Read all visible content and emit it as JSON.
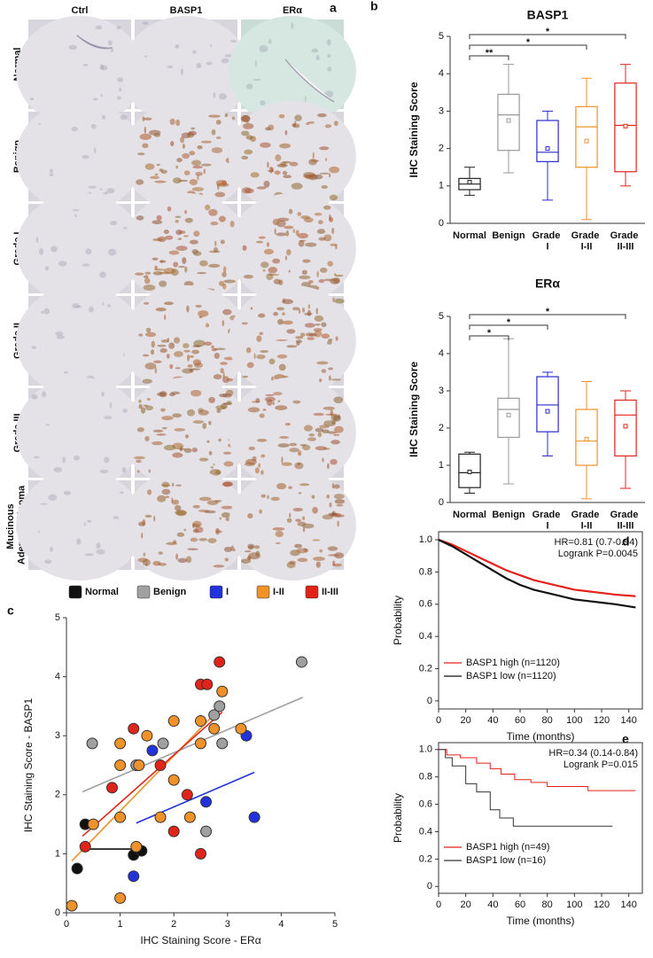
{
  "image_grid": {
    "label": "a",
    "columns": [
      "Ctrl",
      "BASP1",
      "ERα"
    ],
    "rows": [
      "Normal",
      "Benign",
      "Grade I",
      "Grade II",
      "Grade III",
      "Mucinous Adenocarcinoma"
    ]
  },
  "chart_data": [
    {
      "type": "box",
      "label": "b",
      "title": "BASP1",
      "ylabel": "IHC Staining Score",
      "categories": [
        "Normal",
        "Benign",
        "Grade I",
        "Grade I-II",
        "Grade II-III"
      ],
      "colors": [
        "#222222",
        "#999999",
        "#2a2ad0",
        "#f0922a",
        "#e2231a"
      ],
      "ylim": [
        0,
        5
      ],
      "yticks": [
        0,
        1,
        2,
        3,
        4,
        5
      ],
      "boxes": [
        {
          "min": 0.75,
          "q1": 0.9,
          "median": 1.05,
          "q3": 1.2,
          "max": 1.5,
          "mean": 1.1
        },
        {
          "min": 1.35,
          "q1": 1.95,
          "median": 2.9,
          "q3": 3.45,
          "max": 4.25,
          "mean": 2.75
        },
        {
          "min": 0.62,
          "q1": 1.65,
          "median": 1.9,
          "q3": 2.75,
          "max": 3.0,
          "mean": 2.0
        },
        {
          "min": 0.1,
          "q1": 1.5,
          "median": 2.58,
          "q3": 3.12,
          "max": 3.88,
          "mean": 2.2
        },
        {
          "min": 1.0,
          "q1": 1.38,
          "median": 2.62,
          "q3": 3.75,
          "max": 4.25,
          "mean": 2.6
        }
      ],
      "annotations": [
        {
          "from": 0,
          "to": 1,
          "text": "**"
        },
        {
          "from": 0,
          "to": 3,
          "text": "*"
        },
        {
          "from": 0,
          "to": 4,
          "text": "*"
        }
      ]
    },
    {
      "type": "box",
      "title": "ERα",
      "ylabel": "IHC Staining Score",
      "categories": [
        "Normal",
        "Benign",
        "Grade I",
        "Grade I-II",
        "Grade II-III"
      ],
      "colors": [
        "#222222",
        "#999999",
        "#2a2ad0",
        "#f0922a",
        "#e2231a"
      ],
      "ylim": [
        0,
        5
      ],
      "yticks": [
        0,
        1,
        2,
        3,
        4,
        5
      ],
      "boxes": [
        {
          "min": 0.25,
          "q1": 0.4,
          "median": 0.8,
          "q3": 1.3,
          "max": 1.35,
          "mean": 0.82
        },
        {
          "min": 0.5,
          "q1": 1.75,
          "median": 2.5,
          "q3": 2.8,
          "max": 4.4,
          "mean": 2.35
        },
        {
          "min": 1.25,
          "q1": 1.9,
          "median": 2.62,
          "q3": 3.38,
          "max": 3.5,
          "mean": 2.45
        },
        {
          "min": 0.1,
          "q1": 1.0,
          "median": 1.65,
          "q3": 2.5,
          "max": 3.25,
          "mean": 1.7
        },
        {
          "min": 0.38,
          "q1": 1.25,
          "median": 2.35,
          "q3": 2.75,
          "max": 3.0,
          "mean": 2.05
        }
      ],
      "annotations": [
        {
          "from": 0,
          "to": 1,
          "text": "*"
        },
        {
          "from": 0,
          "to": 2,
          "text": "*"
        },
        {
          "from": 0,
          "to": 4,
          "text": "*"
        }
      ]
    },
    {
      "type": "scatter",
      "label": "c",
      "xlabel": "IHC Staining Score - ERα",
      "ylabel": "IHC Staining Score - BASP1",
      "xlim": [
        0,
        5
      ],
      "ylim": [
        0,
        5
      ],
      "xticks": [
        0,
        1,
        2,
        3,
        4,
        5
      ],
      "yticks": [
        0,
        1,
        2,
        3,
        4,
        5
      ],
      "legend": "top",
      "series": [
        {
          "name": "Normal",
          "color": "#111111",
          "x": [
            0.2,
            0.35,
            1.25,
            1.4
          ],
          "values": [
            0.75,
            1.5,
            0.98,
            1.05
          ],
          "fit": {
            "x": [
              0.3,
              1.35
            ],
            "values": [
              1.08,
              1.08
            ]
          }
        },
        {
          "name": "Benign",
          "color": "#a0a0a0",
          "x": [
            0.48,
            1.3,
            1.8,
            2.6,
            2.75,
            2.9,
            2.85,
            4.38
          ],
          "values": [
            2.87,
            2.5,
            2.87,
            1.38,
            3.35,
            2.87,
            3.5,
            4.25
          ],
          "fit": {
            "x": [
              0.3,
              4.4
            ],
            "values": [
              2.05,
              3.65
            ]
          }
        },
        {
          "name": "I",
          "color": "#2233dd",
          "x": [
            1.25,
            1.6,
            2.6,
            3.35,
            3.5
          ],
          "values": [
            0.62,
            2.75,
            1.88,
            3.0,
            1.62
          ],
          "fit": {
            "x": [
              1.3,
              3.5
            ],
            "values": [
              1.52,
              2.38
            ]
          }
        },
        {
          "name": "I-II",
          "color": "#f0922a",
          "x": [
            0.1,
            0.5,
            1.0,
            1.0,
            1.0,
            1.0,
            1.35,
            1.3,
            1.5,
            1.75,
            2.0,
            2.0,
            2.3,
            2.5,
            2.5,
            2.75,
            2.9,
            3.25
          ],
          "values": [
            0.12,
            1.5,
            0.25,
            2.87,
            2.5,
            1.62,
            2.5,
            1.12,
            3.0,
            1.62,
            2.25,
            3.25,
            1.62,
            3.25,
            2.87,
            3.12,
            3.75,
            3.12
          ],
          "fit": {
            "x": [
              0.1,
              2.95
            ],
            "values": [
              0.88,
              3.55
            ]
          }
        },
        {
          "name": "II-III",
          "color": "#e2231a",
          "x": [
            0.35,
            0.85,
            1.25,
            1.75,
            2.0,
            2.25,
            2.5,
            2.5,
            2.62,
            2.85
          ],
          "values": [
            1.12,
            2.12,
            3.12,
            2.5,
            1.38,
            2.0,
            1.0,
            3.87,
            3.87,
            4.25
          ],
          "fit": {
            "x": [
              0.3,
              2.9
            ],
            "values": [
              1.3,
              3.4
            ]
          }
        }
      ]
    },
    {
      "type": "line",
      "label": "d",
      "xlabel": "Time (months)",
      "ylabel": "Probability",
      "annotations": [
        "HR=0.81 (0.7-0.94)",
        "Logrank P=0.0045"
      ],
      "legend": "lower left",
      "xlim": [
        0,
        150
      ],
      "ylim": [
        -0.05,
        1.05
      ],
      "xticks": [
        0,
        20,
        40,
        60,
        80,
        100,
        120,
        140
      ],
      "yticks": [
        0,
        0.2,
        0.4,
        0.6,
        0.8,
        {
          "value": 1,
          "label": "1.0"
        }
      ],
      "series": [
        {
          "name": "BASP1 high (n=1120)",
          "color": "#e8201a",
          "x": [
            0,
            10,
            20,
            30,
            40,
            50,
            60,
            70,
            80,
            90,
            100,
            110,
            120,
            130,
            145
          ],
          "values": [
            1,
            0.97,
            0.93,
            0.89,
            0.85,
            0.81,
            0.78,
            0.75,
            0.73,
            0.71,
            0.69,
            0.68,
            0.67,
            0.66,
            0.65
          ]
        },
        {
          "name": "BASP1 low (n=1120)",
          "color": "#111111",
          "x": [
            0,
            10,
            20,
            30,
            40,
            50,
            60,
            70,
            80,
            90,
            100,
            110,
            120,
            130,
            145
          ],
          "values": [
            1,
            0.96,
            0.91,
            0.86,
            0.81,
            0.76,
            0.72,
            0.69,
            0.67,
            0.65,
            0.63,
            0.62,
            0.61,
            0.6,
            0.58
          ]
        }
      ]
    },
    {
      "type": "line",
      "label": "e",
      "xlabel": "Time (months)",
      "ylabel": "Probability",
      "annotations": [
        "HR=0.34 (0.14-0.84)",
        "Logrank P=0.015"
      ],
      "legend": "lower left",
      "xlim": [
        0,
        150
      ],
      "ylim": [
        -0.05,
        1.05
      ],
      "xticks": [
        0,
        20,
        40,
        60,
        80,
        100,
        120,
        140
      ],
      "yticks": [
        0,
        0.2,
        0.4,
        0.6,
        0.8,
        {
          "value": 1,
          "label": "1.0"
        }
      ],
      "series": [
        {
          "name": "BASP1 high (n=49)",
          "color": "#e8201a",
          "x": [
            0,
            6,
            6,
            16,
            16,
            28,
            28,
            38,
            38,
            46,
            46,
            56,
            56,
            68,
            68,
            80,
            80,
            110,
            110,
            145
          ],
          "values": [
            1,
            1,
            0.96,
            0.96,
            0.94,
            0.94,
            0.9,
            0.9,
            0.86,
            0.86,
            0.82,
            0.82,
            0.78,
            0.78,
            0.76,
            0.76,
            0.73,
            0.73,
            0.7,
            0.7
          ]
        },
        {
          "name": "BASP1 low (n=16)",
          "color": "#333333",
          "x": [
            0,
            5,
            5,
            10,
            10,
            20,
            20,
            28,
            28,
            38,
            38,
            45,
            45,
            55,
            55,
            128
          ],
          "values": [
            1,
            1,
            0.94,
            0.94,
            0.88,
            0.88,
            0.75,
            0.75,
            0.69,
            0.69,
            0.56,
            0.56,
            0.5,
            0.5,
            0.44,
            0.44
          ]
        }
      ]
    }
  ]
}
